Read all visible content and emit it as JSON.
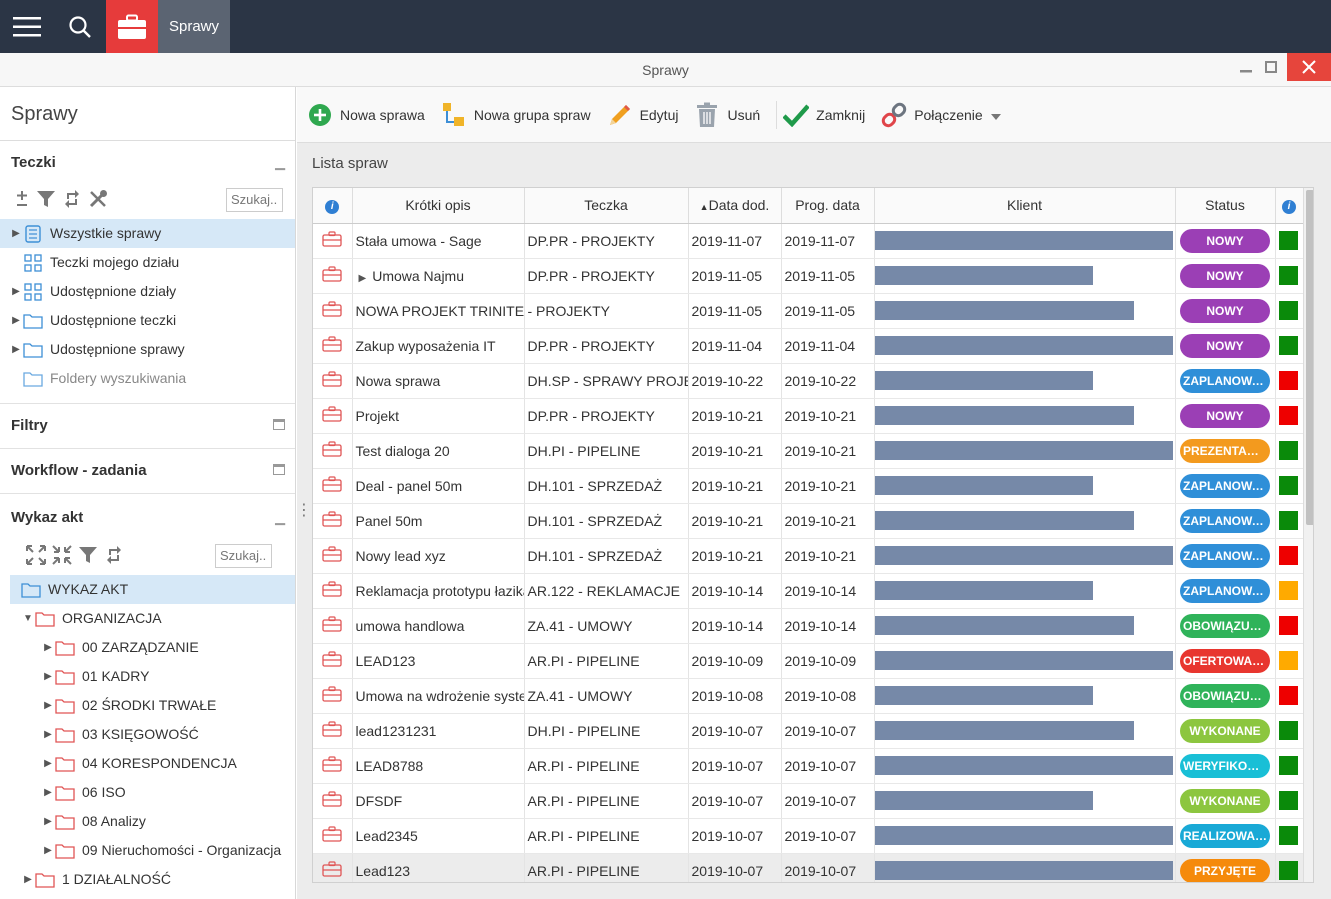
{
  "topbar": {
    "app_tab": "Sprawy"
  },
  "window": {
    "title": "Sprawy"
  },
  "left": {
    "header": "Sprawy",
    "teczki": {
      "title": "Teczki",
      "search_placeholder": "Szukaj..",
      "items": [
        {
          "label": "Wszystkie sprawy"
        },
        {
          "label": "Teczki mojego działu"
        },
        {
          "label": "Udostępnione działy"
        },
        {
          "label": "Udostępnione teczki"
        },
        {
          "label": "Udostępnione sprawy"
        },
        {
          "label": "Foldery wyszukiwania"
        }
      ]
    },
    "filtry": {
      "title": "Filtry"
    },
    "workflow": {
      "title": "Workflow - zadania"
    },
    "wykaz": {
      "title": "Wykaz akt",
      "search_placeholder": "Szukaj..",
      "items": [
        {
          "label": "WYKAZ AKT"
        },
        {
          "label": "ORGANIZACJA"
        },
        {
          "label": "00 ZARZĄDZANIE"
        },
        {
          "label": "01 KADRY"
        },
        {
          "label": "02 ŚRODKI TRWAŁE"
        },
        {
          "label": "03 KSIĘGOWOŚĆ"
        },
        {
          "label": "04 KORESPONDENCJA"
        },
        {
          "label": "06 ISO"
        },
        {
          "label": "08 Analizy"
        },
        {
          "label": "09 Nieruchomości - Organizacja"
        },
        {
          "label": "1 DZIAŁALNOŚĆ"
        }
      ]
    }
  },
  "toolbar": {
    "new_case": "Nowa sprawa",
    "new_group": "Nowa grupa spraw",
    "edit": "Edytuj",
    "delete": "Usuń",
    "close": "Zamknij",
    "connection": "Połączenie"
  },
  "list": {
    "title": "Lista spraw",
    "columns": {
      "info": "i",
      "short_desc": "Krótki opis",
      "folder": "Teczka",
      "date_added": "Data dod.",
      "due_date": "Prog. data",
      "client": "Klient",
      "status": "Status",
      "info2": "i"
    },
    "colors": {
      "NOWY": "#9b3fb5",
      "ZAPLANOWA…": "#2f8fd8",
      "PREZENTACJA": "#f39a1e",
      "OBOWIĄZUJ…": "#2fb35a",
      "OFERTOWANIE": "#e8362f",
      "WYKONANE": "#8cc63f",
      "WERYFIKOW…": "#19bfd6",
      "REALIZOWANE": "#19a9d6",
      "PRZYJĘTE": "#f58a0b",
      "green": "#0a8a0a",
      "red": "#ee0000",
      "orange": "#ffaa00"
    },
    "rows": [
      {
        "desc": "Stała umowa - Sage",
        "folder": "DP.PR - PROJEKTY",
        "added": "2019-11-07",
        "due": "2019-11-07",
        "bar": 1.0,
        "status": "NOWY",
        "flag": "green"
      },
      {
        "desc": "Umowa Najmu",
        "folder": "DP.PR - PROJEKTY",
        "added": "2019-11-05",
        "due": "2019-11-05",
        "bar": 0.73,
        "status": "NOWY",
        "flag": "green",
        "expand": true
      },
      {
        "desc": "NOWA PROJEKT TRINITEC",
        "folder": "- PROJEKTY",
        "added": "2019-11-05",
        "due": "2019-11-05",
        "bar": 0.87,
        "status": "NOWY",
        "flag": "green"
      },
      {
        "desc": "Zakup wyposażenia IT",
        "folder": "DP.PR - PROJEKTY",
        "added": "2019-11-04",
        "due": "2019-11-04",
        "bar": 1.0,
        "status": "NOWY",
        "flag": "green"
      },
      {
        "desc": "Nowa sprawa",
        "folder": "DH.SP - SPRAWY PROJEKTOWE",
        "added": "2019-10-22",
        "due": "2019-10-22",
        "bar": 0.73,
        "status": "ZAPLANOWA…",
        "flag": "red"
      },
      {
        "desc": "Projekt",
        "folder": "DP.PR - PROJEKTY",
        "added": "2019-10-21",
        "due": "2019-10-21",
        "bar": 0.87,
        "status": "NOWY",
        "flag": "red"
      },
      {
        "desc": "Test dialoga 20",
        "folder": "DH.PI - PIPELINE",
        "added": "2019-10-21",
        "due": "2019-10-21",
        "bar": 1.0,
        "status": "PREZENTACJA",
        "flag": "green"
      },
      {
        "desc": "Deal - panel 50m",
        "folder": "DH.101 - SPRZEDAŻ",
        "added": "2019-10-21",
        "due": "2019-10-21",
        "bar": 0.73,
        "status": "ZAPLANOWA…",
        "flag": "green"
      },
      {
        "desc": "Panel 50m",
        "folder": "DH.101 - SPRZEDAŻ",
        "added": "2019-10-21",
        "due": "2019-10-21",
        "bar": 0.87,
        "status": "ZAPLANOWA…",
        "flag": "green"
      },
      {
        "desc": "Nowy lead xyz",
        "folder": "DH.101 - SPRZEDAŻ",
        "added": "2019-10-21",
        "due": "2019-10-21",
        "bar": 1.0,
        "status": "ZAPLANOWA…",
        "flag": "red"
      },
      {
        "desc": "Reklamacja prototypu łazika",
        "folder": "AR.122 - REKLAMACJE",
        "added": "2019-10-14",
        "due": "2019-10-14",
        "bar": 0.73,
        "status": "ZAPLANOWA…",
        "flag": "orange"
      },
      {
        "desc": "umowa handlowa",
        "folder": "ZA.41 - UMOWY",
        "added": "2019-10-14",
        "due": "2019-10-14",
        "bar": 0.87,
        "status": "OBOWIĄZUJ…",
        "flag": "red"
      },
      {
        "desc": "LEAD123",
        "folder": "AR.PI - PIPELINE",
        "added": "2019-10-09",
        "due": "2019-10-09",
        "bar": 1.0,
        "status": "OFERTOWANIE",
        "flag": "orange"
      },
      {
        "desc": "Umowa na wdrożenie systemu",
        "folder": "ZA.41 - UMOWY",
        "added": "2019-10-08",
        "due": "2019-10-08",
        "bar": 0.73,
        "status": "OBOWIĄZUJ…",
        "flag": "red"
      },
      {
        "desc": "lead1231231",
        "folder": "DH.PI - PIPELINE",
        "added": "2019-10-07",
        "due": "2019-10-07",
        "bar": 0.87,
        "status": "WYKONANE",
        "flag": "green"
      },
      {
        "desc": "LEAD8788",
        "folder": "AR.PI - PIPELINE",
        "added": "2019-10-07",
        "due": "2019-10-07",
        "bar": 1.0,
        "status": "WERYFIKOW…",
        "flag": "green"
      },
      {
        "desc": "DFSDF",
        "folder": "AR.PI - PIPELINE",
        "added": "2019-10-07",
        "due": "2019-10-07",
        "bar": 0.73,
        "status": "WYKONANE",
        "flag": "green"
      },
      {
        "desc": "Lead2345",
        "folder": "AR.PI - PIPELINE",
        "added": "2019-10-07",
        "due": "2019-10-07",
        "bar": 1.0,
        "status": "REALIZOWANE",
        "flag": "green"
      },
      {
        "desc": "Lead123",
        "folder": "AR.PI - PIPELINE",
        "added": "2019-10-07",
        "due": "2019-10-07",
        "bar": 1.0,
        "status": "PRZYJĘTE",
        "flag": "green",
        "highlight": true
      }
    ]
  }
}
